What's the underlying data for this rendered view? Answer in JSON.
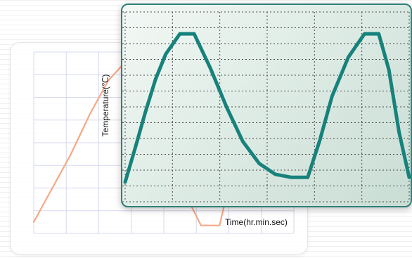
{
  "chart_data": [
    {
      "type": "line",
      "series": [
        {
          "x": [
            0,
            1,
            2,
            3,
            4,
            5,
            6,
            7,
            8,
            9,
            10,
            11,
            12,
            13,
            14
          ],
          "values": [
            5,
            25,
            45,
            68,
            88,
            100,
            100,
            65,
            25,
            3,
            3,
            50,
            92,
            100,
            60
          ]
        }
      ],
      "color": "#f5a886",
      "xlabel": "",
      "ylabel": ""
    },
    {
      "type": "line",
      "series": [
        {
          "x": [
            0,
            0.5,
            1,
            1.5,
            2,
            2.7,
            3.4,
            4.2,
            5,
            5.8,
            6.6,
            7.4,
            8.2,
            8.6,
            9,
            9.6,
            10.2,
            11,
            11.8,
            12.5,
            13,
            13.5,
            14
          ],
          "values": [
            0,
            22,
            45,
            66,
            82,
            95,
            95,
            73,
            48,
            26,
            12,
            5,
            3,
            3,
            3,
            27,
            55,
            80,
            95,
            95,
            72,
            32,
            3
          ]
        }
      ],
      "color": "#17827c",
      "ylabel": "Temperature(℃)",
      "xlabel": "Time(hr.min.sec)"
    }
  ]
}
